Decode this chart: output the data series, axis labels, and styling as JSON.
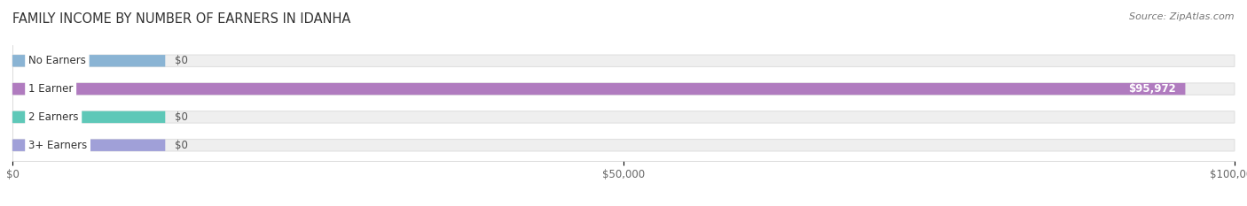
{
  "title": "FAMILY INCOME BY NUMBER OF EARNERS IN IDANHA",
  "source": "Source: ZipAtlas.com",
  "categories": [
    "No Earners",
    "1 Earner",
    "2 Earners",
    "3+ Earners"
  ],
  "values": [
    0,
    95972,
    0,
    0
  ],
  "bar_colors": [
    "#8ab4d4",
    "#b07bbf",
    "#5ec8b8",
    "#a0a0d8"
  ],
  "xlim": [
    0,
    100000
  ],
  "xticks": [
    0,
    50000,
    100000
  ],
  "xtick_labels": [
    "$0",
    "$50,000",
    "$100,000"
  ],
  "value_labels": [
    "$0",
    "$95,972",
    "$0",
    "$0"
  ],
  "background_color": "#ffffff",
  "title_fontsize": 10.5,
  "bar_height": 0.42,
  "figsize": [
    14.06,
    2.33
  ],
  "dpi": 100,
  "track_color": "#efefef",
  "track_edge_color": "#e0e0e0"
}
